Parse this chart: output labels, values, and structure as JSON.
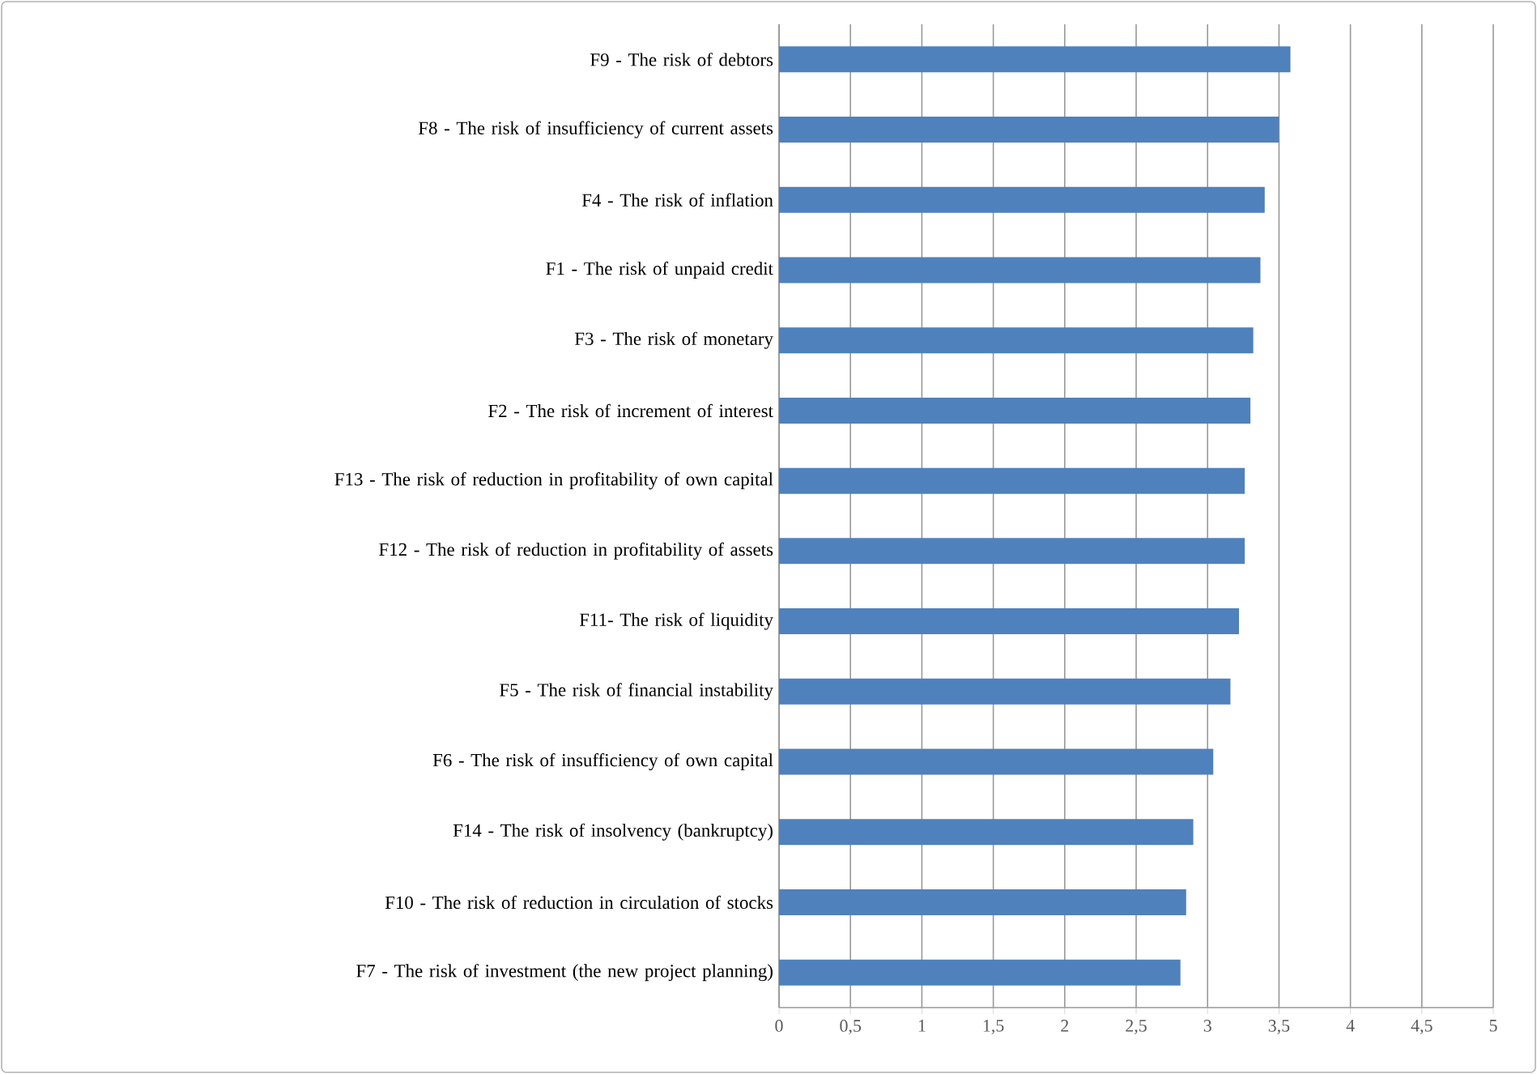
{
  "chart_data": {
    "type": "bar",
    "orientation": "horizontal",
    "color": "#4f81bd",
    "grid": "x",
    "categories": [
      "F9 - The risk of debtors",
      "F8 - The risk of insufficiency of current assets",
      "F4 - The risk of inflation",
      "F1 - The risk of unpaid credit",
      "F3 - The risk of monetary",
      "F2 - The risk of increment of interest",
      "F13 - The risk of reduction in profitability of own capital",
      "F12 - The risk of reduction in profitability of assets",
      "F11- The risk of liquidity",
      "F5 - The risk of financial instability",
      "F6 - The risk of insufficiency of own capital",
      "F14 - The risk of insolvency (bankruptcy)",
      "F10 - The risk of reduction in circulation of stocks",
      "F7 - The risk of investment (the new project planning)"
    ],
    "values": [
      3.58,
      3.5,
      3.4,
      3.37,
      3.32,
      3.3,
      3.26,
      3.26,
      3.22,
      3.16,
      3.04,
      2.9,
      2.85,
      2.81
    ],
    "xlim": [
      0,
      5
    ],
    "xticks": [
      0,
      {
        "value": 0.5,
        "label": "0,5"
      },
      1,
      {
        "value": 1.5,
        "label": "1,5"
      },
      2,
      {
        "value": 2.5,
        "label": "2,5"
      },
      3,
      {
        "value": 3.5,
        "label": "3,5"
      },
      4,
      {
        "value": 4.5,
        "label": "4,5"
      },
      5
    ]
  }
}
